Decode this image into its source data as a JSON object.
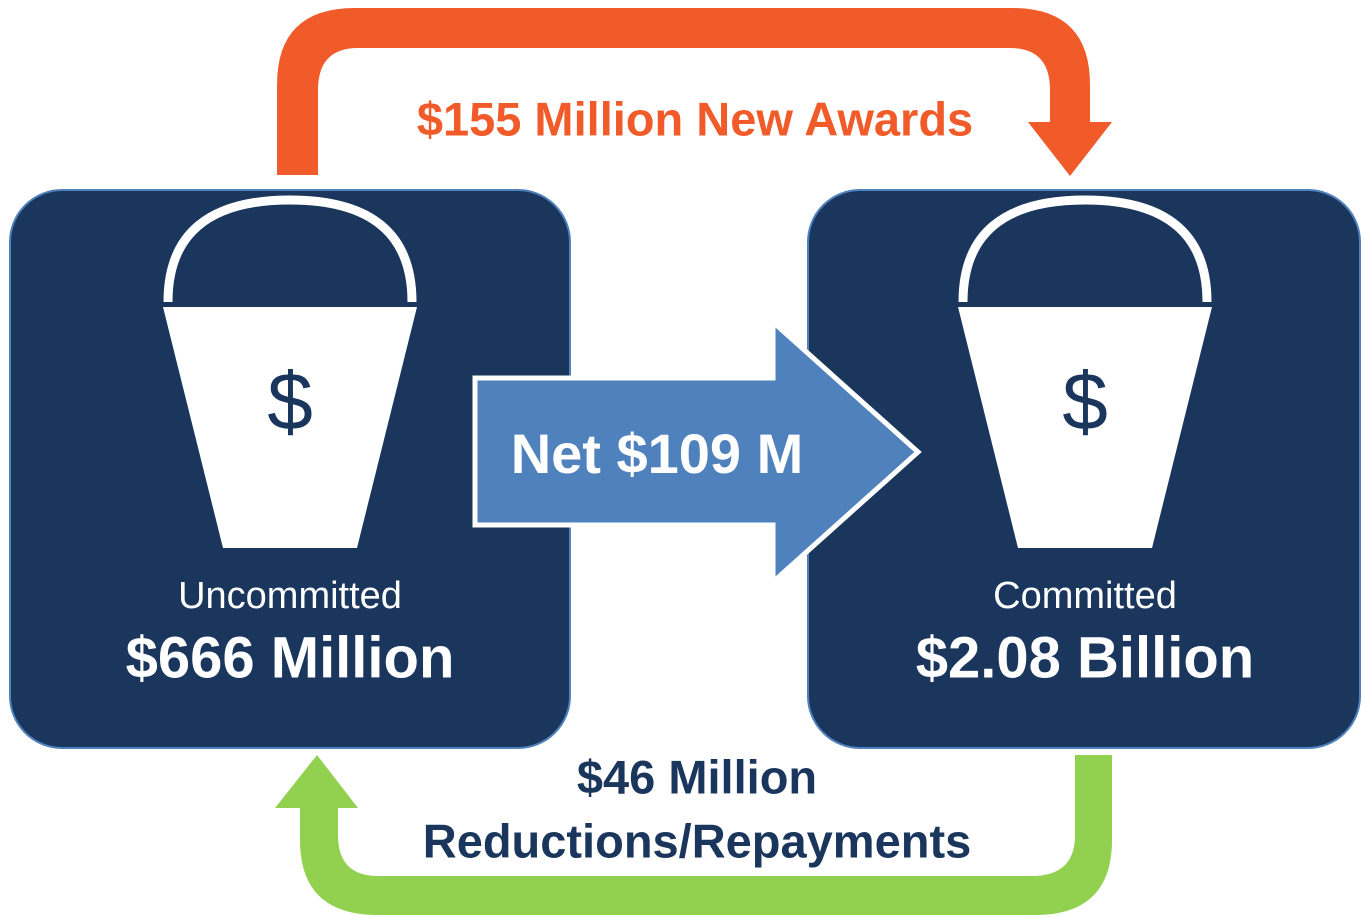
{
  "top_flow": {
    "label": "$155 Million New Awards"
  },
  "middle_flow": {
    "label": "Net $109 M"
  },
  "bottom_flow": {
    "label_lines": [
      "$46 Million",
      "Reductions/Repayments"
    ]
  },
  "buckets": [
    {
      "symbol": "$",
      "label": "Uncommitted",
      "amount": "$666 Million"
    },
    {
      "symbol": "$",
      "label": "Committed",
      "amount": "$2.08 Billion"
    }
  ]
}
